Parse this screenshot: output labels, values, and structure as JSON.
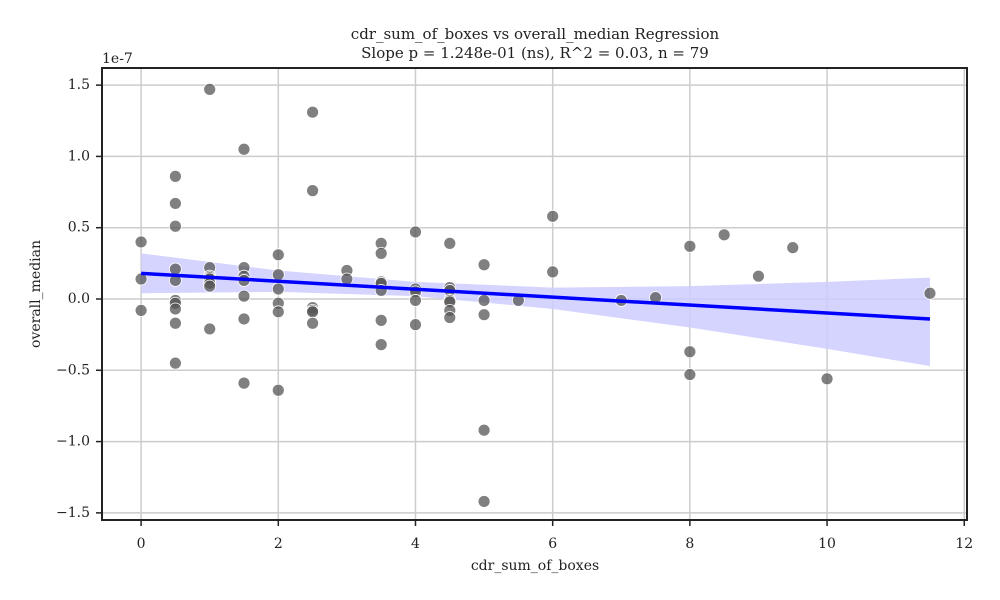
{
  "chart_data": {
    "type": "scatter",
    "title": "cdr_sum_of_boxes vs overall_median Regression",
    "subtitle": "Slope p = 1.248e-01 (ns), R^2 = 0.03, n = 79",
    "x_label": "cdr_sum_of_boxes",
    "y_label": "overall_median",
    "y_offset_label": "1e-7",
    "xlim": [
      -0.57,
      12.04
    ],
    "ylim": [
      -1.55,
      1.62
    ],
    "xticks": [
      0,
      2,
      4,
      6,
      8,
      10,
      12
    ],
    "yticks": [
      {
        "value": -1.5,
        "label": "−1.5"
      },
      {
        "value": -1.0,
        "label": "−1.0"
      },
      {
        "value": -0.5,
        "label": "−0.5"
      },
      {
        "value": 0,
        "label": "0.0"
      },
      0.5,
      {
        "value": 1.0,
        "label": "1.0"
      },
      1.5
    ],
    "grid": true,
    "points": {
      "color": "#555555",
      "x": [
        0,
        0,
        0,
        0.5,
        0.5,
        0.5,
        0.5,
        0.5,
        0.5,
        0.5,
        0.5,
        0.5,
        0.5,
        1,
        1,
        1,
        1,
        1,
        1,
        1,
        1,
        1.5,
        1.5,
        1.5,
        1.5,
        1.5,
        1.5,
        1.5,
        2,
        2,
        2,
        2,
        2,
        2,
        2.5,
        2.5,
        2.5,
        2.5,
        2.5,
        2.5,
        3,
        3,
        3.5,
        3.5,
        3.5,
        3.5,
        3.5,
        3.5,
        3.5,
        4,
        4,
        4,
        4,
        4,
        4.5,
        4.5,
        4.5,
        4.5,
        4.5,
        4.5,
        4.5,
        5,
        5,
        5,
        5,
        5,
        5.5,
        6,
        6,
        7,
        7.5,
        8,
        8,
        8,
        8.5,
        9,
        9.5,
        10,
        11.5
      ],
      "y": [
        0.4,
        0.14,
        -0.08,
        0.86,
        0.67,
        0.51,
        0.21,
        0.13,
        -0.01,
        -0.03,
        -0.07,
        -0.17,
        -0.45,
        1.47,
        0.22,
        0.16,
        0.15,
        0.14,
        0.11,
        0.09,
        -0.21,
        1.05,
        0.22,
        0.16,
        0.13,
        0.02,
        -0.14,
        -0.59,
        0.31,
        0.17,
        0.07,
        -0.03,
        -0.09,
        -0.64,
        1.31,
        0.76,
        -0.06,
        -0.08,
        -0.09,
        -0.17,
        0.2,
        0.14,
        0.39,
        0.32,
        0.12,
        0.11,
        0.06,
        -0.15,
        -0.32,
        0.47,
        0.07,
        0.05,
        -0.01,
        -0.18,
        0.39,
        0.08,
        0.06,
        -0.01,
        -0.02,
        -0.08,
        -0.13,
        0.24,
        -0.01,
        -0.11,
        -0.92,
        -1.42,
        -0.01,
        0.58,
        0.19,
        -0.01,
        0.01,
        0.37,
        -0.37,
        -0.53,
        0.45,
        0.16,
        0.36,
        -0.56,
        0.04
      ]
    },
    "regression": {
      "color": "#0000ff",
      "x": [
        0,
        11.5
      ],
      "y": [
        0.18,
        -0.14
      ]
    },
    "band": {
      "color": "#ccccff",
      "x": [
        0,
        2,
        4,
        6,
        8,
        10,
        11.5
      ],
      "upper": [
        0.32,
        0.2,
        0.12,
        0.08,
        0.09,
        0.12,
        0.15
      ],
      "lower": [
        0.04,
        0.05,
        0.02,
        -0.07,
        -0.2,
        -0.35,
        -0.47
      ]
    }
  }
}
